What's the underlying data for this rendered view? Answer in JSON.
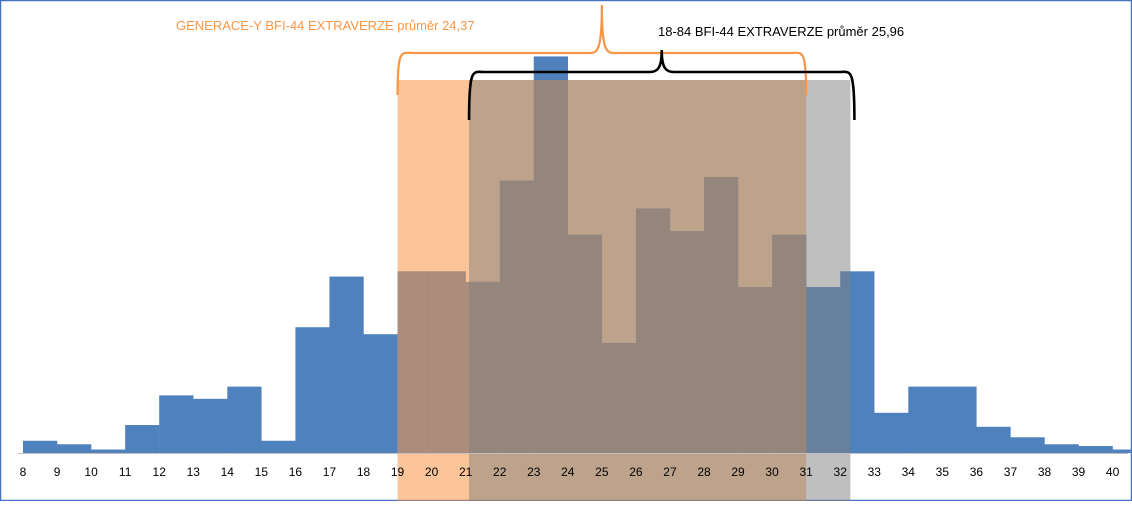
{
  "chart_data": {
    "type": "bar",
    "categories": [
      "8",
      "9",
      "10",
      "11",
      "12",
      "13",
      "14",
      "15",
      "16",
      "17",
      "18",
      "19",
      "20",
      "21",
      "22",
      "23",
      "24",
      "25",
      "26",
      "27",
      "28",
      "29",
      "30",
      "31",
      "32",
      "33",
      "34",
      "35",
      "36",
      "37",
      "38",
      "39",
      "40"
    ],
    "values": [
      7,
      5,
      2,
      16,
      33,
      31,
      38,
      7,
      72,
      101,
      68,
      104,
      104,
      98,
      156,
      227,
      125,
      63,
      140,
      127,
      158,
      95,
      125,
      95,
      104,
      23,
      38,
      38,
      15,
      9,
      5,
      4,
      2
    ],
    "ylim": [
      0,
      245
    ],
    "grid": false,
    "legend": "none",
    "bar_color": "#4f81bd",
    "highlights": [
      {
        "label": "GENERACE-Y BFI-44 EXTRAVERZE průměr 24,37",
        "from": 18.5,
        "to": 30.5,
        "color": "#f79646",
        "label_color": "#f79646",
        "bracket_color": "#f79646"
      },
      {
        "label": "18-84 BFI-44 EXTRAVERZE průměr  25,96",
        "from": 20.6,
        "to": 31.8,
        "color": "#7f7f7f",
        "label_color": "#000000",
        "bracket_color": "#000000"
      }
    ]
  }
}
